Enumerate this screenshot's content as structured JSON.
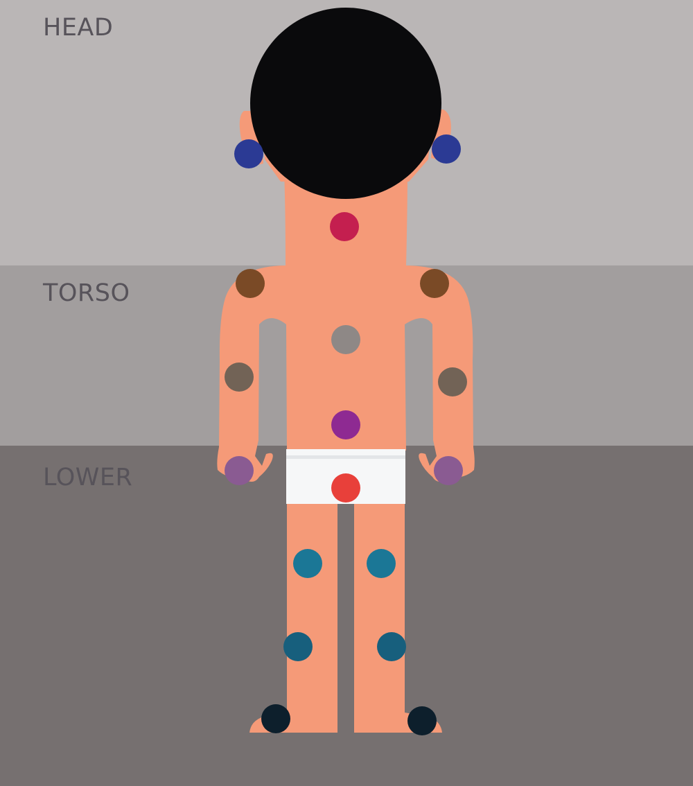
{
  "colors": {
    "head_band": "#bab6b6",
    "torso_band": "#a29e9e",
    "lower_band": "#767070",
    "skin": "#f59a78",
    "hair": "#0a0a0c",
    "underwear": "#f6f7f8",
    "underwear_line": "#e3e5e8"
  },
  "regions": [
    {
      "key": "head",
      "label": "HEAD"
    },
    {
      "key": "torso",
      "label": "TORSO"
    },
    {
      "key": "lower",
      "label": "LOWER"
    }
  ],
  "markers": [
    {
      "name": "left-ear-marker",
      "color": "#2b3a94"
    },
    {
      "name": "right-ear-marker",
      "color": "#2b3a94"
    },
    {
      "name": "neck-marker",
      "color": "#c41f4f"
    },
    {
      "name": "left-shoulder-marker",
      "color": "#7a4a26"
    },
    {
      "name": "right-shoulder-marker",
      "color": "#7a4a26"
    },
    {
      "name": "upper-back-marker",
      "color": "#8e8886"
    },
    {
      "name": "left-elbow-marker",
      "color": "#726356"
    },
    {
      "name": "right-elbow-marker",
      "color": "#726356"
    },
    {
      "name": "lower-back-marker",
      "color": "#8e2a92"
    },
    {
      "name": "left-wrist-marker",
      "color": "#8a5b92"
    },
    {
      "name": "right-wrist-marker",
      "color": "#8a5b92"
    },
    {
      "name": "hip-marker",
      "color": "#e8403a"
    },
    {
      "name": "left-thigh-marker",
      "color": "#1b7796"
    },
    {
      "name": "right-thigh-marker",
      "color": "#1b7796"
    },
    {
      "name": "left-knee-marker",
      "color": "#175f7d"
    },
    {
      "name": "right-knee-marker",
      "color": "#175f7d"
    },
    {
      "name": "left-ankle-marker",
      "color": "#0d1f2c"
    },
    {
      "name": "right-ankle-marker",
      "color": "#0d1f2c"
    }
  ]
}
